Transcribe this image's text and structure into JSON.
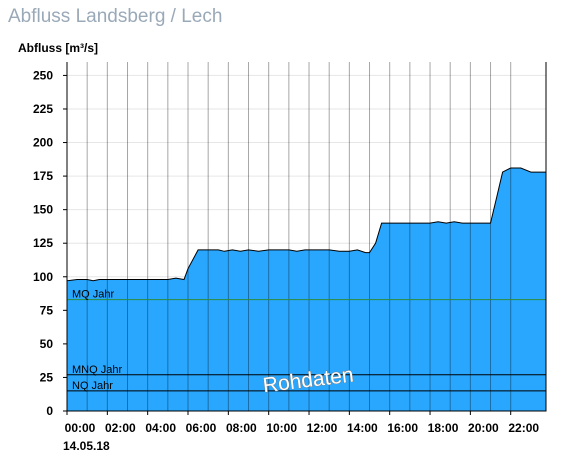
{
  "title": "Abfluss Landsberg / Lech",
  "chart_data": {
    "type": "area",
    "ylabel": "Abfluss [m³/s]",
    "ylim": [
      0,
      260
    ],
    "yticks": [
      0,
      25,
      50,
      75,
      100,
      125,
      150,
      175,
      200,
      225,
      250
    ],
    "xlim": [
      0,
      23.75
    ],
    "xticks": [
      0,
      2,
      4,
      6,
      8,
      10,
      12,
      14,
      16,
      18,
      20,
      22
    ],
    "xtick_labels": [
      "00:00",
      "02:00",
      "04:00",
      "06:00",
      "08:00",
      "10:00",
      "12:00",
      "14:00",
      "16:00",
      "18:00",
      "20:00",
      "22:00"
    ],
    "date_label": "14.05.18",
    "fill_color": "#29a7ff",
    "grid": true,
    "series": [
      {
        "x": [
          0,
          0.5,
          1.0,
          1.3,
          1.6,
          2.0,
          3.0,
          4.0,
          5.0,
          5.4,
          5.8,
          6.0,
          6.5,
          7.0,
          7.5,
          7.8,
          8.2,
          8.6,
          9.0,
          9.5,
          10.0,
          10.5,
          11.0,
          11.4,
          11.8,
          12.0,
          12.5,
          13.0,
          13.5,
          14.0,
          14.4,
          14.8,
          15.0,
          15.3,
          15.6,
          16.0,
          17.0,
          18.0,
          18.4,
          18.8,
          19.2,
          19.6,
          20.0,
          20.5,
          21.0,
          21.3,
          21.6,
          22.0,
          22.5,
          23.0,
          23.75
        ],
        "values": [
          97,
          98,
          98,
          97,
          98,
          98,
          98,
          98,
          98,
          99,
          98,
          106,
          120,
          120,
          120,
          119,
          120,
          119,
          120,
          119,
          120,
          120,
          120,
          119,
          120,
          120,
          120,
          120,
          119,
          119,
          120,
          118,
          118,
          125,
          140,
          140,
          140,
          140,
          141,
          140,
          141,
          140,
          140,
          140,
          140,
          159,
          178,
          181,
          181,
          178,
          178
        ]
      }
    ],
    "reference_lines": [
      {
        "label": "MQ Jahr",
        "value": 83,
        "color": "#2e8b3a"
      },
      {
        "label": "MNQ Jahr",
        "value": 27,
        "color": "#000000"
      },
      {
        "label": "NQ Jahr",
        "value": 15,
        "color": "#000000"
      }
    ],
    "watermark": "Rohdaten"
  }
}
